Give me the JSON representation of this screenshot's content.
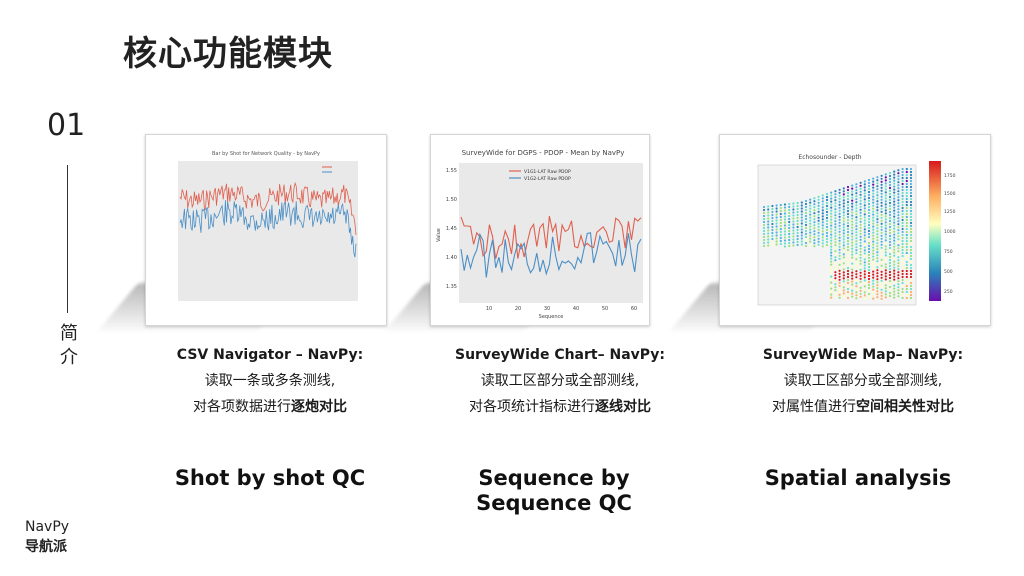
{
  "title": "核心功能模块",
  "section_number": "01",
  "section_label": [
    "简",
    "介"
  ],
  "brand": {
    "en": "NavPy",
    "cn": "导航派"
  },
  "modules": [
    {
      "heading": "CSV Navigator – NavPy:",
      "line1": "读取一条或多条测线,",
      "line2_prefix": "对各项数据进行",
      "line2_bold": "逐炮对比",
      "footer": "Shot by shot QC",
      "footer_line2": "",
      "chart_title": "Bar by Shot for Network Quality - by NavPy",
      "colors": {
        "red": "#e0604f",
        "blue": "#4b8fc6"
      }
    },
    {
      "heading": "SurveyWide Chart– NavPy:",
      "line1": "读取工区部分或全部测线,",
      "line2_prefix": "对各项统计指标进行",
      "line2_bold": "逐线对比",
      "footer": "Sequence by",
      "footer_line2": "Sequence QC",
      "chart_title": "SurveyWide for  DGPS - PDOP - Mean by NavPy",
      "legend": [
        "V1G1-LAT Raw PDOP",
        "V1G2-LAT Raw PDOP"
      ],
      "xlabel": "Sequence",
      "ylabel": "Value",
      "yticks": [
        "1.55",
        "1.50",
        "1.45",
        "1.40",
        "1.35"
      ],
      "xticks": [
        "10",
        "20",
        "30",
        "40",
        "50",
        "60"
      ],
      "colors": {
        "red": "#e0604f",
        "blue": "#4b8fc6"
      }
    },
    {
      "heading": "SurveyWide Map– NavPy:",
      "line1": "读取工区部分或全部测线,",
      "line2_prefix": "对属性值进行",
      "line2_bold": "空间相关性对比",
      "footer": "Spatial analysis",
      "footer_line2": "",
      "chart_title": "Echosounder - Depth",
      "colorbar_ticks": [
        "1750",
        "1500",
        "1250",
        "1000",
        "750",
        "500",
        "250"
      ],
      "colors": {
        "low": "#6a0dad",
        "high": "#d7191c"
      }
    }
  ]
}
